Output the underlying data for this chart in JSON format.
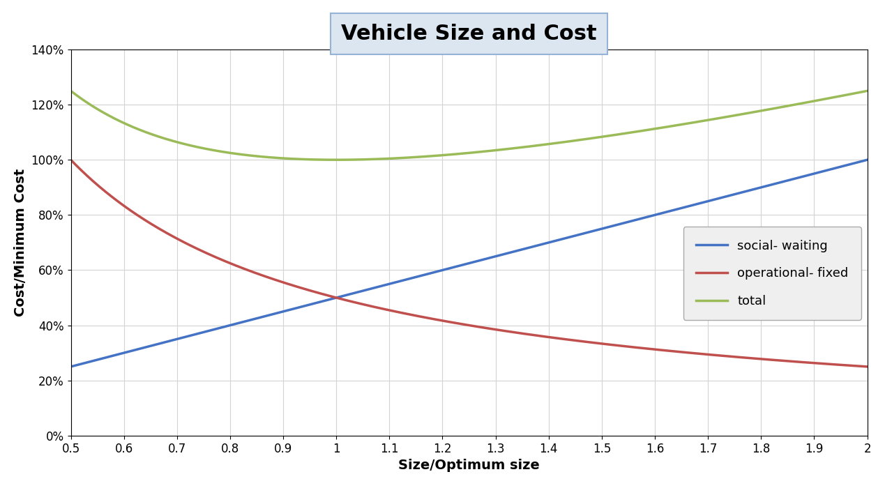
{
  "title": "Vehicle Size and Cost",
  "xlabel": "Size/Optimum size",
  "ylabel": "Cost/Minimum Cost",
  "xlim": [
    0.5,
    2.0
  ],
  "ylim": [
    0.0,
    1.4
  ],
  "xticks": [
    0.5,
    0.6,
    0.7,
    0.8,
    0.9,
    1.0,
    1.1,
    1.2,
    1.3,
    1.4,
    1.5,
    1.6,
    1.7,
    1.8,
    1.9,
    2.0
  ],
  "yticks": [
    0.0,
    0.2,
    0.4,
    0.6,
    0.8,
    1.0,
    1.2,
    1.4
  ],
  "social_color": "#4472C4",
  "operational_color": "#C0504D",
  "total_color": "#9BBB59",
  "social_label": "social- waiting",
  "operational_label": "operational- fixed",
  "total_label": "total",
  "line_width": 2.5,
  "title_fontsize": 22,
  "axis_label_fontsize": 14,
  "tick_fontsize": 12,
  "legend_fontsize": 13,
  "background_color": "#FFFFFF",
  "plot_bg_color": "#FFFFFF",
  "grid_color": "#D3D3D3",
  "title_box_facecolor": "#DCE6F1",
  "title_box_edgecolor": "#95B3D7",
  "legend_facecolor": "#EFEFEF",
  "legend_edgecolor": "#AAAAAA"
}
